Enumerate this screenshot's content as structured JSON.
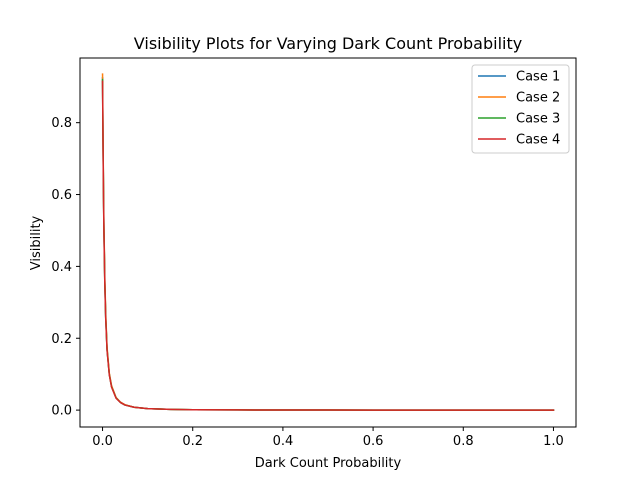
{
  "chart_data": {
    "type": "line",
    "title": "Visibility Plots for Varying Dark Count Probability",
    "xlabel": "Dark Count Probability",
    "ylabel": "Visibility",
    "xlim": [
      -0.05,
      1.05
    ],
    "ylim": [
      -0.047,
      0.98
    ],
    "xticks": [
      0.0,
      0.2,
      0.4,
      0.6,
      0.8,
      1.0
    ],
    "xtick_labels": [
      "0.0",
      "0.2",
      "0.4",
      "0.6",
      "0.8",
      "1.0"
    ],
    "yticks": [
      0.0,
      0.2,
      0.4,
      0.6,
      0.8
    ],
    "ytick_labels": [
      "0.0",
      "0.2",
      "0.4",
      "0.6",
      "0.8"
    ],
    "grid": false,
    "legend": "top-right",
    "series": [
      {
        "name": "Case 1",
        "color": "#1f77b4",
        "x": [
          0,
          0.001,
          0.002,
          0.003,
          0.005,
          0.007,
          0.01,
          0.015,
          0.02,
          0.03,
          0.04,
          0.05,
          0.07,
          0.1,
          0.15,
          0.2,
          0.3,
          0.4,
          0.5,
          0.6,
          0.7,
          0.8,
          0.9,
          1.0
        ],
        "y": [
          0.925,
          0.76,
          0.62,
          0.51,
          0.36,
          0.26,
          0.17,
          0.1,
          0.066,
          0.034,
          0.021,
          0.014,
          0.008,
          0.004,
          0.002,
          0.001,
          0.0005,
          0.0003,
          0.0002,
          0.0001,
          0.0001,
          0.0001,
          0.0,
          0.0
        ]
      },
      {
        "name": "Case 2",
        "color": "#ff7f0e",
        "x": [
          0,
          0.001,
          0.002,
          0.003,
          0.005,
          0.007,
          0.01,
          0.015,
          0.02,
          0.03,
          0.04,
          0.05,
          0.07,
          0.1,
          0.15,
          0.2,
          0.3,
          0.4,
          0.5,
          0.6,
          0.7,
          0.8,
          0.9,
          1.0
        ],
        "y": [
          0.935,
          0.77,
          0.63,
          0.52,
          0.37,
          0.27,
          0.175,
          0.103,
          0.068,
          0.035,
          0.022,
          0.015,
          0.008,
          0.004,
          0.002,
          0.001,
          0.0005,
          0.0003,
          0.0002,
          0.0001,
          0.0001,
          0.0001,
          0.0,
          0.0
        ]
      },
      {
        "name": "Case 3",
        "color": "#2ca02c",
        "x": [
          0,
          0.001,
          0.002,
          0.003,
          0.005,
          0.007,
          0.01,
          0.015,
          0.02,
          0.03,
          0.04,
          0.05,
          0.07,
          0.1,
          0.15,
          0.2,
          0.3,
          0.4,
          0.5,
          0.6,
          0.7,
          0.8,
          0.9,
          1.0
        ],
        "y": [
          0.92,
          0.755,
          0.615,
          0.505,
          0.355,
          0.258,
          0.168,
          0.099,
          0.065,
          0.034,
          0.021,
          0.014,
          0.008,
          0.004,
          0.002,
          0.001,
          0.0005,
          0.0003,
          0.0002,
          0.0001,
          0.0001,
          0.0001,
          0.0,
          0.0
        ]
      },
      {
        "name": "Case 4",
        "color": "#d62728",
        "x": [
          0,
          0.001,
          0.002,
          0.003,
          0.005,
          0.007,
          0.01,
          0.015,
          0.02,
          0.03,
          0.04,
          0.05,
          0.07,
          0.1,
          0.15,
          0.2,
          0.3,
          0.4,
          0.5,
          0.6,
          0.7,
          0.8,
          0.9,
          1.0
        ],
        "y": [
          0.915,
          0.75,
          0.61,
          0.5,
          0.352,
          0.255,
          0.166,
          0.098,
          0.064,
          0.033,
          0.021,
          0.014,
          0.008,
          0.004,
          0.002,
          0.001,
          0.0005,
          0.0003,
          0.0002,
          0.0001,
          0.0001,
          0.0001,
          0.0,
          0.0
        ]
      }
    ]
  }
}
